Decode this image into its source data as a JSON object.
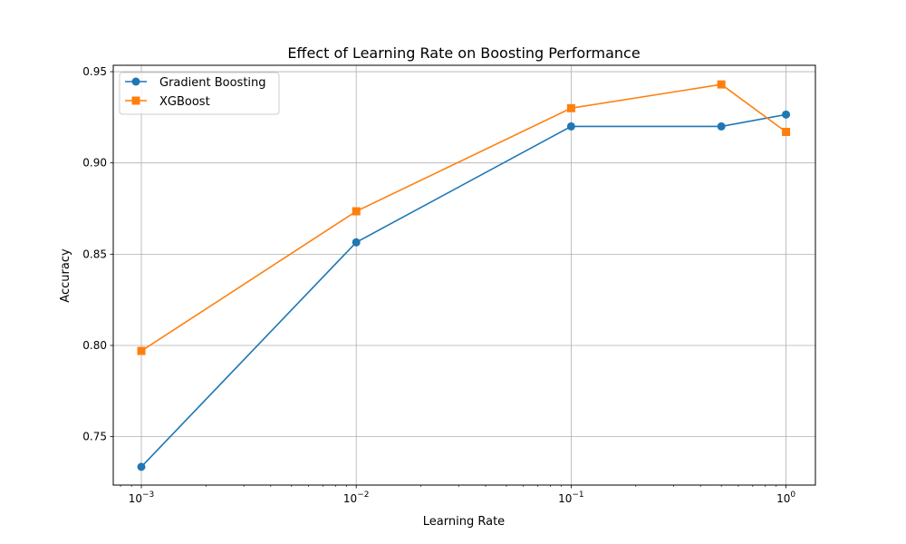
{
  "chart_data": {
    "type": "line",
    "title": "Effect of Learning Rate on Boosting Performance",
    "xlabel": "Learning Rate",
    "ylabel": "Accuracy",
    "xscale": "log",
    "xlim": [
      0.00074,
      1.37
    ],
    "ylim": [
      0.7235,
      0.9535
    ],
    "grid": true,
    "legend_position": "top-left",
    "x": [
      0.001,
      0.01,
      0.1,
      0.5,
      1.0
    ],
    "x_ticks": [
      {
        "value": 0.001,
        "base": "10",
        "exp": "−3"
      },
      {
        "value": 0.01,
        "base": "10",
        "exp": "−2"
      },
      {
        "value": 0.1,
        "base": "10",
        "exp": "−1"
      },
      {
        "value": 1,
        "base": "10",
        "exp": "0"
      }
    ],
    "y_ticks": [
      "0.75",
      "0.80",
      "0.85",
      "0.90",
      "0.95"
    ],
    "series": [
      {
        "name": "Gradient Boosting",
        "color": "#1f77b4",
        "marker": "circle",
        "values": [
          0.7335,
          0.8565,
          0.92,
          0.92,
          0.9265
        ]
      },
      {
        "name": "XGBoost",
        "color": "#ff7f0e",
        "marker": "square",
        "values": [
          0.797,
          0.8735,
          0.93,
          0.943,
          0.917
        ]
      }
    ]
  }
}
